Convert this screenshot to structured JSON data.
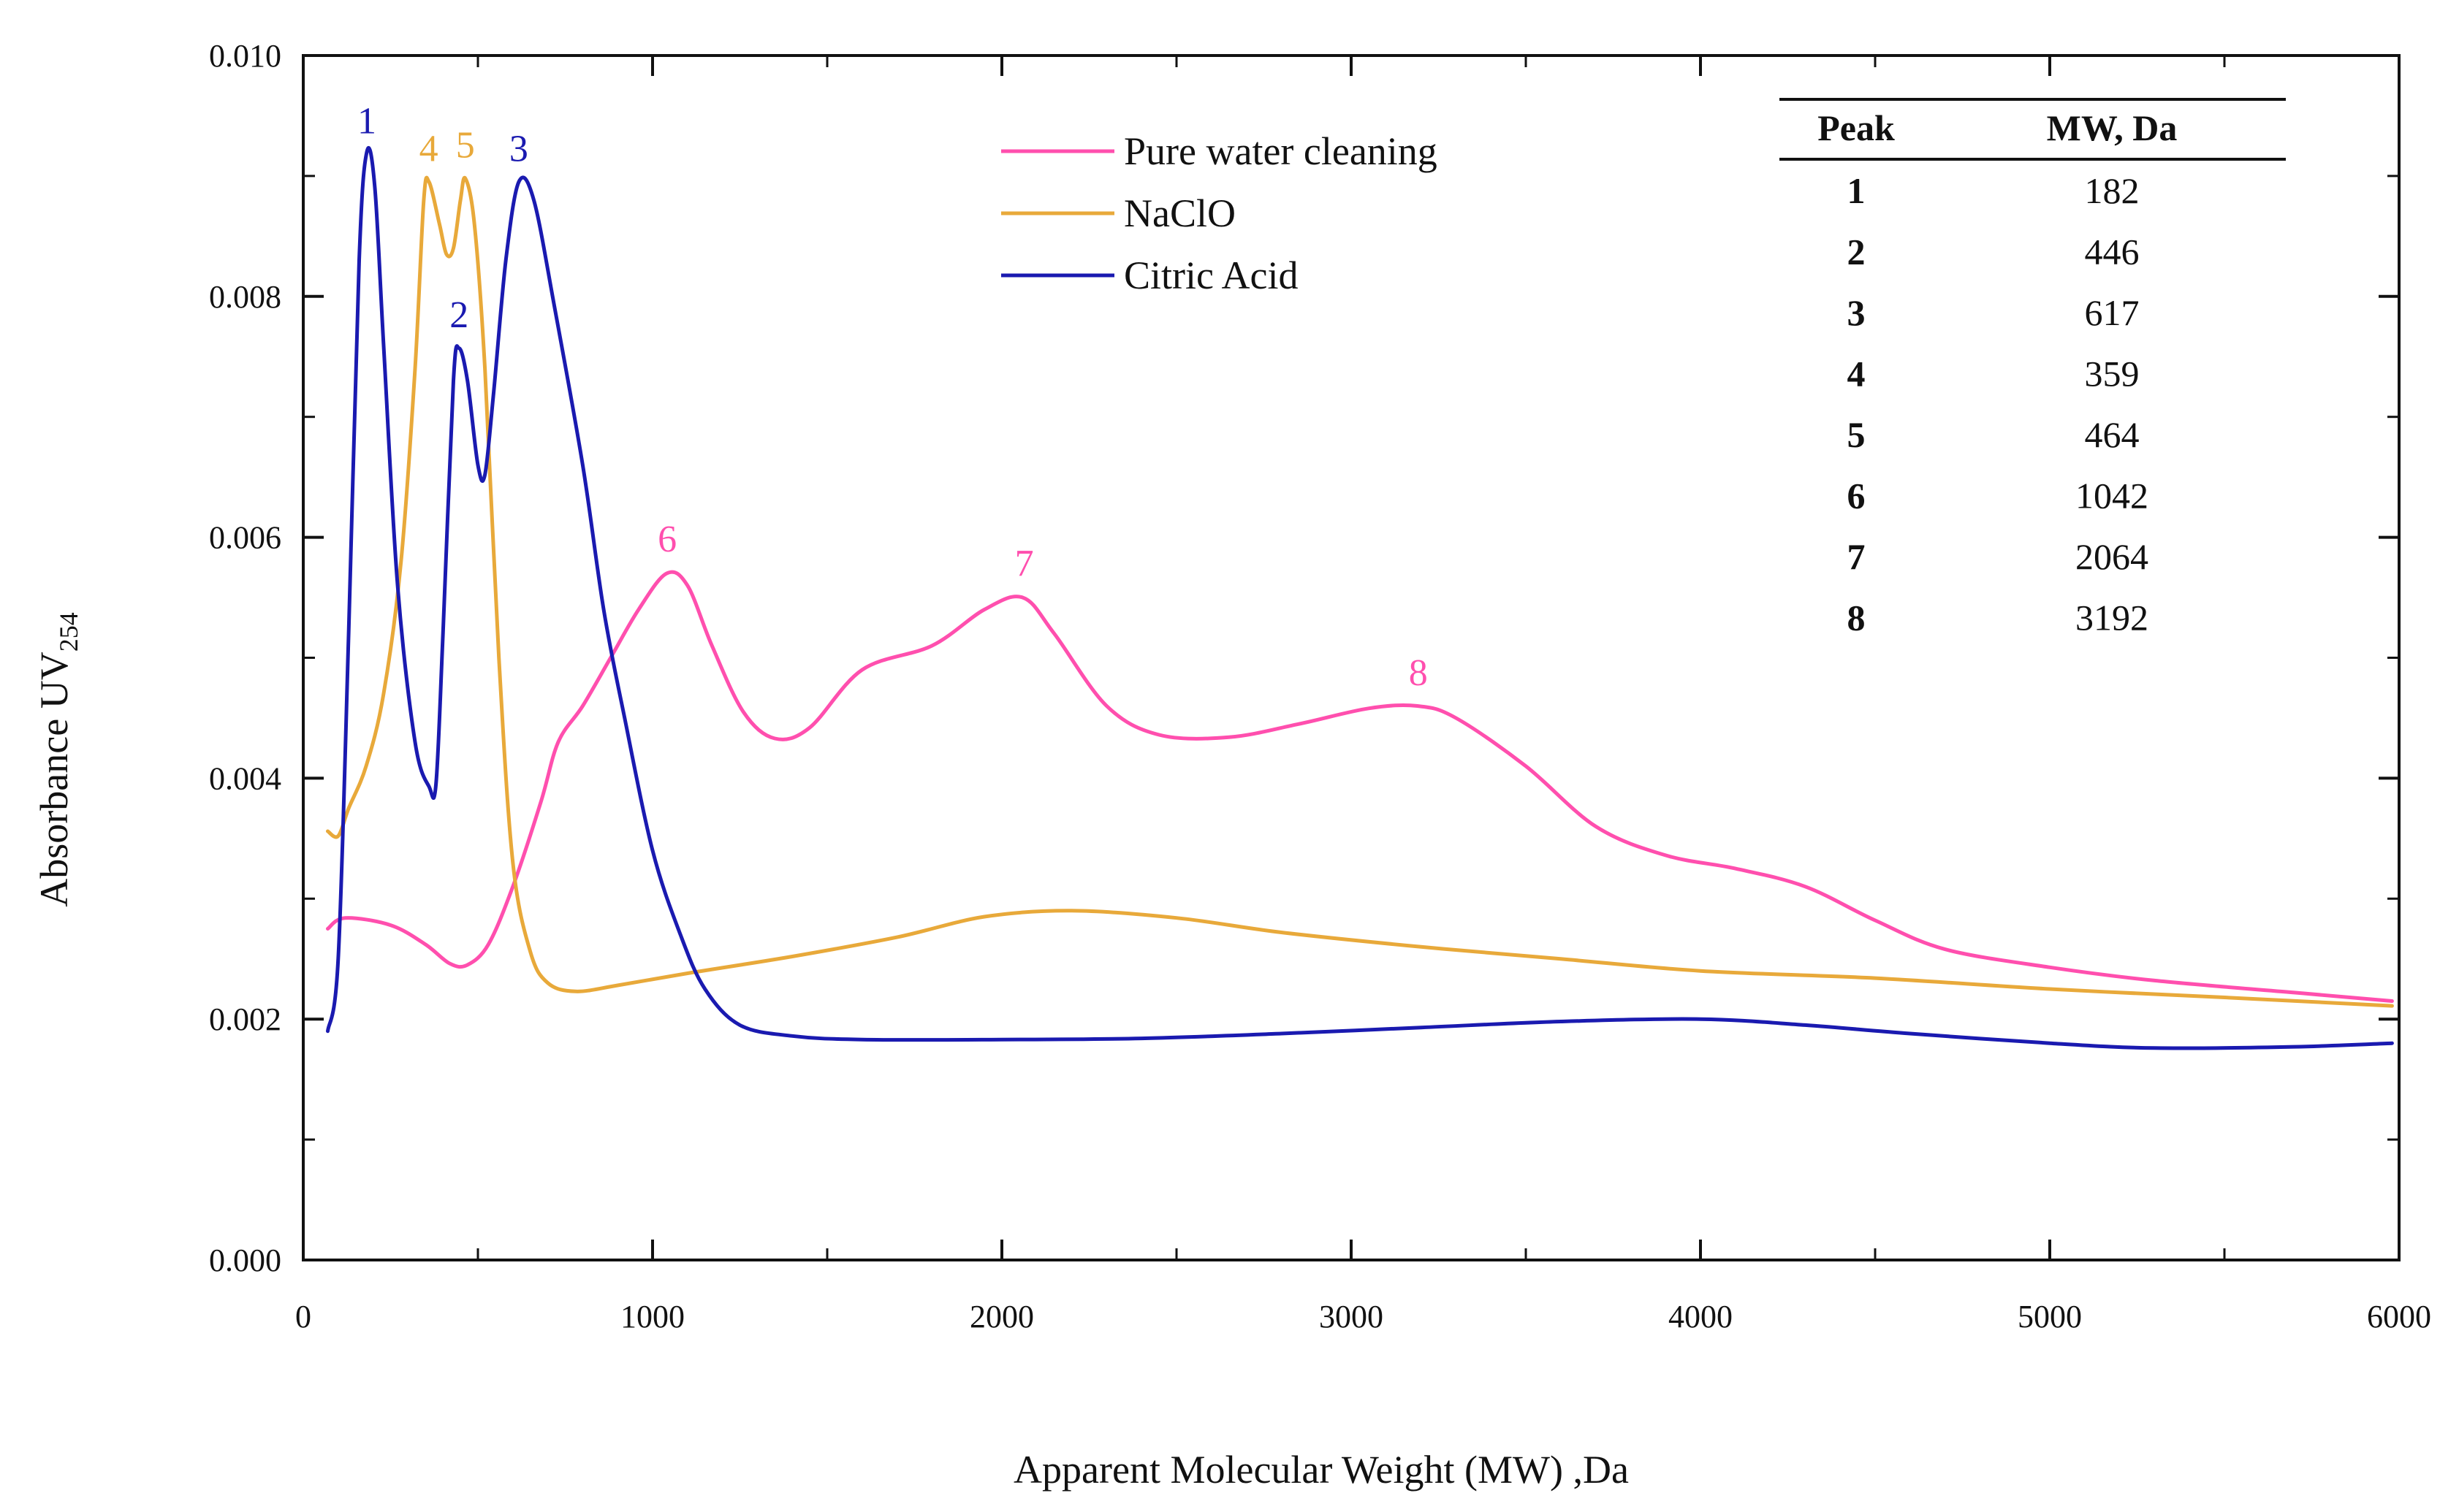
{
  "chart_data": {
    "type": "line",
    "xlabel": "Apparent Molecular Weight (MW) ,Da",
    "ylabel": "Absorbance UV",
    "ylabel_sub": "254",
    "xlim": [
      0,
      6000
    ],
    "ylim": [
      0.0,
      0.01
    ],
    "xticks": [
      "0",
      "1000",
      "2000",
      "3000",
      "4000",
      "5000",
      "6000"
    ],
    "xtick_values": [
      0,
      1000,
      2000,
      3000,
      4000,
      5000,
      6000
    ],
    "yticks": [
      "0.000",
      "0.002",
      "0.004",
      "0.006",
      "0.008",
      "0.010"
    ],
    "ytick_values": [
      0.0,
      0.002,
      0.004,
      0.006,
      0.008,
      0.01
    ],
    "legend_position": "top-center",
    "series": [
      {
        "name": "Pure water cleaning",
        "color": "#ff4fae",
        "points": [
          [
            70,
            0.00275
          ],
          [
            120,
            0.00284
          ],
          [
            250,
            0.00278
          ],
          [
            350,
            0.00262
          ],
          [
            420,
            0.00246
          ],
          [
            470,
            0.00245
          ],
          [
            530,
            0.00262
          ],
          [
            600,
            0.0031
          ],
          [
            680,
            0.0038
          ],
          [
            730,
            0.0043
          ],
          [
            800,
            0.0046
          ],
          [
            880,
            0.005
          ],
          [
            960,
            0.0054
          ],
          [
            1040,
            0.0057
          ],
          [
            1100,
            0.0056
          ],
          [
            1170,
            0.0051
          ],
          [
            1260,
            0.00455
          ],
          [
            1350,
            0.00433
          ],
          [
            1450,
            0.00442
          ],
          [
            1600,
            0.0049
          ],
          [
            1800,
            0.0051
          ],
          [
            1950,
            0.0054
          ],
          [
            2060,
            0.0055
          ],
          [
            2150,
            0.0052
          ],
          [
            2300,
            0.0046
          ],
          [
            2450,
            0.00436
          ],
          [
            2650,
            0.00434
          ],
          [
            2850,
            0.00445
          ],
          [
            3050,
            0.00458
          ],
          [
            3190,
            0.0046
          ],
          [
            3300,
            0.0045
          ],
          [
            3500,
            0.0041
          ],
          [
            3700,
            0.0036
          ],
          [
            3900,
            0.00336
          ],
          [
            4100,
            0.00325
          ],
          [
            4300,
            0.0031
          ],
          [
            4500,
            0.00282
          ],
          [
            4700,
            0.00258
          ],
          [
            5000,
            0.00243
          ],
          [
            5300,
            0.00232
          ],
          [
            5700,
            0.00222
          ],
          [
            5980,
            0.00215
          ]
        ]
      },
      {
        "name": "NaClO",
        "color": "#e8a93a",
        "points": [
          [
            70,
            0.00356
          ],
          [
            100,
            0.00352
          ],
          [
            130,
            0.00375
          ],
          [
            180,
            0.0041
          ],
          [
            230,
            0.0047
          ],
          [
            280,
            0.0058
          ],
          [
            320,
            0.0074
          ],
          [
            345,
            0.0088
          ],
          [
            360,
            0.00895
          ],
          [
            390,
            0.0086
          ],
          [
            410,
            0.00835
          ],
          [
            430,
            0.0084
          ],
          [
            450,
            0.0088
          ],
          [
            464,
            0.00898
          ],
          [
            490,
            0.0086
          ],
          [
            520,
            0.0074
          ],
          [
            560,
            0.005
          ],
          [
            600,
            0.0033
          ],
          [
            650,
            0.00256
          ],
          [
            700,
            0.0023
          ],
          [
            780,
            0.00223
          ],
          [
            900,
            0.00228
          ],
          [
            1100,
            0.00238
          ],
          [
            1400,
            0.00252
          ],
          [
            1700,
            0.00268
          ],
          [
            1950,
            0.00285
          ],
          [
            2200,
            0.0029
          ],
          [
            2500,
            0.00284
          ],
          [
            2800,
            0.00272
          ],
          [
            3200,
            0.0026
          ],
          [
            3600,
            0.0025
          ],
          [
            4000,
            0.0024
          ],
          [
            4500,
            0.00234
          ],
          [
            5000,
            0.00225
          ],
          [
            5500,
            0.00218
          ],
          [
            5980,
            0.00211
          ]
        ]
      },
      {
        "name": "Citric Acid",
        "color": "#1a1ab0",
        "points": [
          [
            70,
            0.0019
          ],
          [
            100,
            0.0025
          ],
          [
            130,
            0.0052
          ],
          [
            160,
            0.0083
          ],
          [
            182,
            0.0092
          ],
          [
            205,
            0.0089
          ],
          [
            230,
            0.0076
          ],
          [
            270,
            0.0056
          ],
          [
            320,
            0.0043
          ],
          [
            360,
            0.00393
          ],
          [
            380,
            0.00395
          ],
          [
            400,
            0.0052
          ],
          [
            430,
            0.0073
          ],
          [
            446,
            0.00757
          ],
          [
            470,
            0.0073
          ],
          [
            500,
            0.0066
          ],
          [
            520,
            0.00652
          ],
          [
            545,
            0.0072
          ],
          [
            580,
            0.0083
          ],
          [
            617,
            0.00895
          ],
          [
            660,
            0.0088
          ],
          [
            720,
            0.0079
          ],
          [
            800,
            0.0066
          ],
          [
            860,
            0.0054
          ],
          [
            920,
            0.0045
          ],
          [
            1000,
            0.0034
          ],
          [
            1080,
            0.0027
          ],
          [
            1150,
            0.00225
          ],
          [
            1250,
            0.00195
          ],
          [
            1400,
            0.00186
          ],
          [
            1600,
            0.00183
          ],
          [
            2000,
            0.00183
          ],
          [
            2400,
            0.00184
          ],
          [
            2800,
            0.00188
          ],
          [
            3200,
            0.00193
          ],
          [
            3600,
            0.00198
          ],
          [
            4000,
            0.002
          ],
          [
            4300,
            0.00195
          ],
          [
            4600,
            0.00188
          ],
          [
            5000,
            0.0018
          ],
          [
            5300,
            0.00176
          ],
          [
            5700,
            0.00177
          ],
          [
            5980,
            0.0018
          ]
        ]
      }
    ],
    "peak_labels": [
      {
        "text": "1",
        "x": 182,
        "y": 0.00922,
        "color": "#1a1ab0"
      },
      {
        "text": "2",
        "x": 446,
        "y": 0.00761,
        "color": "#1a1ab0"
      },
      {
        "text": "3",
        "x": 617,
        "y": 0.00899,
        "color": "#1a1ab0"
      },
      {
        "text": "4",
        "x": 359,
        "y": 0.00899,
        "color": "#e8a93a"
      },
      {
        "text": "5",
        "x": 464,
        "y": 0.00902,
        "color": "#e8a93a"
      },
      {
        "text": "6",
        "x": 1042,
        "y": 0.00575,
        "color": "#ff4fae"
      },
      {
        "text": "7",
        "x": 2064,
        "y": 0.00555,
        "color": "#ff4fae"
      },
      {
        "text": "8",
        "x": 3192,
        "y": 0.00464,
        "color": "#ff4fae"
      }
    ],
    "table": {
      "headers": [
        "Peak",
        "MW, Da"
      ],
      "rows": [
        [
          "1",
          "182"
        ],
        [
          "2",
          "446"
        ],
        [
          "3",
          "617"
        ],
        [
          "4",
          "359"
        ],
        [
          "5",
          "464"
        ],
        [
          "6",
          "1042"
        ],
        [
          "7",
          "2064"
        ],
        [
          "8",
          "3192"
        ]
      ]
    }
  }
}
